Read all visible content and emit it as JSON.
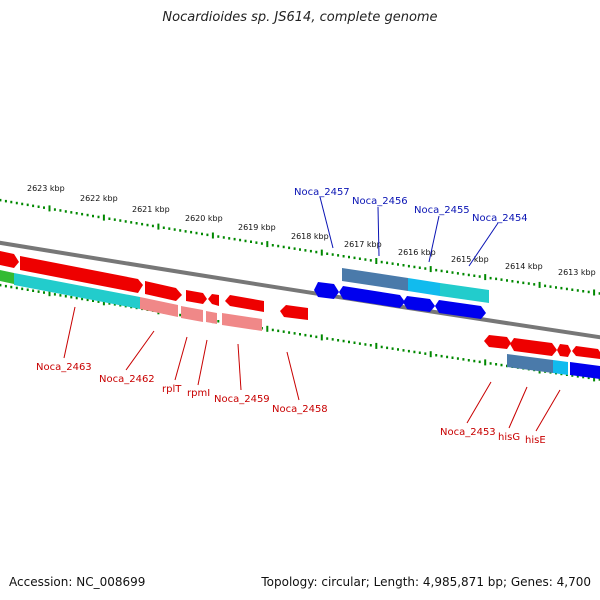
{
  "title": "Nocardioides sp. JS614, complete genome",
  "footer": {
    "accession": "Accession: NC_008699",
    "topology": "Topology: circular; Length: 4,985,871 bp; Genes: 4,700"
  },
  "colors": {
    "forward_gene": "#ee0000",
    "reverse_gene": "#0000ee",
    "rna_gene": "#00cccc",
    "ruler_tick": "#008800",
    "backbone": "#777777",
    "label_top": "#0a14b4",
    "label_bottom": "#c80000"
  },
  "scale_labels": [
    "2623 kbp",
    "2622 kbp",
    "2621 kbp",
    "2620 kbp",
    "2619 kbp",
    "2618 kbp",
    "2617 kbp",
    "2616 kbp",
    "2615 kbp",
    "2614 kbp",
    "2613 kbp"
  ],
  "genes_top": [
    "Noca_2457",
    "Noca_2456",
    "Noca_2455",
    "Noca_2454"
  ],
  "genes_bottom": [
    "Noca_2463",
    "Noca_2462",
    "rplT",
    "rpmI",
    "Noca_2459",
    "Noca_2458",
    "Noca_2453",
    "hisG",
    "hisE"
  ]
}
